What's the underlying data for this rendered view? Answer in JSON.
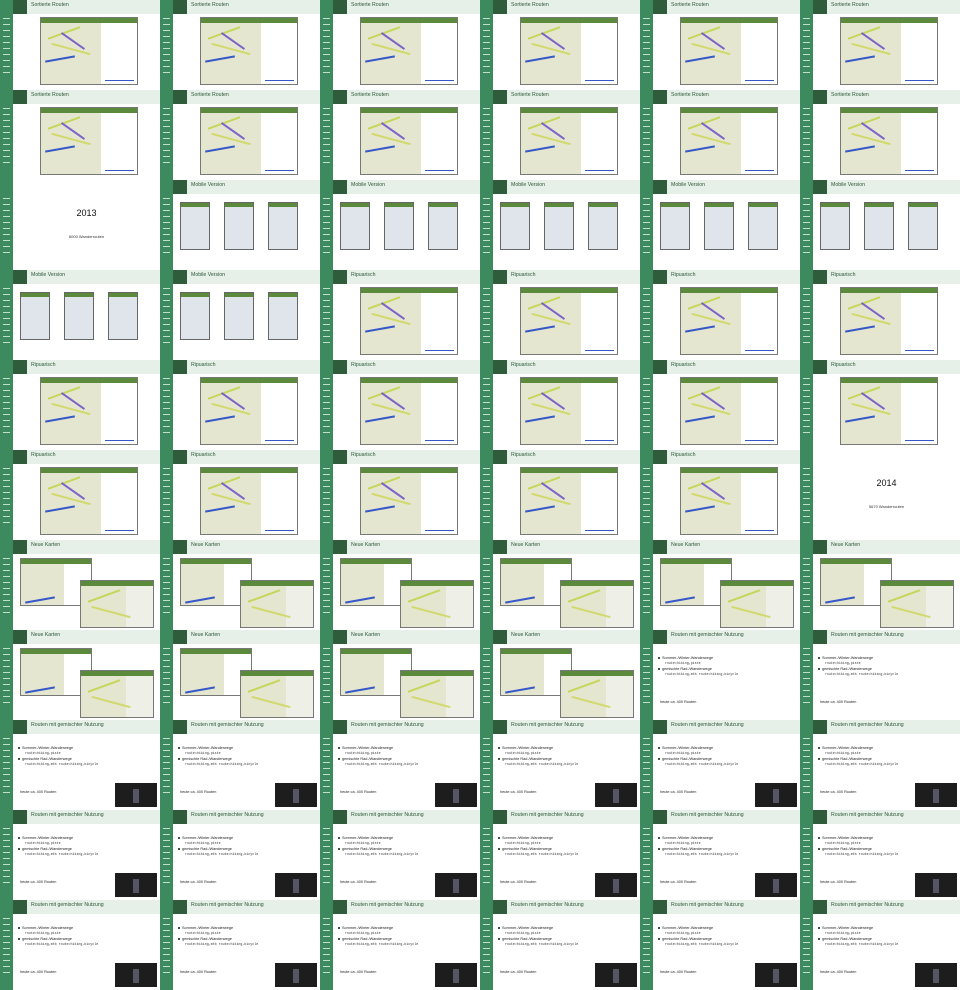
{
  "slides": [
    {
      "title": "Sortierte Routen",
      "kind": "map"
    },
    {
      "title": "Sortierte Routen",
      "kind": "map"
    },
    {
      "title": "Sortierte Routen",
      "kind": "map"
    },
    {
      "title": "Sortierte Routen",
      "kind": "map"
    },
    {
      "title": "Sortierte Routen",
      "kind": "map"
    },
    {
      "title": "Sortierte Routen",
      "kind": "map"
    },
    {
      "title": "Sortierte Routen",
      "kind": "map"
    },
    {
      "title": "Sortierte Routen",
      "kind": "map"
    },
    {
      "title": "Sortierte Routen",
      "kind": "map"
    },
    {
      "title": "Sortierte Routen",
      "kind": "map"
    },
    {
      "title": "Sortierte Routen",
      "kind": "map"
    },
    {
      "title": "Sortierte Routen",
      "kind": "map"
    },
    {
      "title": "",
      "kind": "year",
      "year": "2013",
      "subtitle": "6000 Wanderrouten"
    },
    {
      "title": "Mobile Version",
      "kind": "mobile"
    },
    {
      "title": "Mobile Version",
      "kind": "mobile"
    },
    {
      "title": "Mobile Version",
      "kind": "mobile"
    },
    {
      "title": "Mobile Version",
      "kind": "mobile"
    },
    {
      "title": "Mobile Version",
      "kind": "mobile"
    },
    {
      "title": "Mobile Version",
      "kind": "mobile"
    },
    {
      "title": "Mobile Version",
      "kind": "mobile"
    },
    {
      "title": "Ripuarisch",
      "kind": "map"
    },
    {
      "title": "Ripuarisch",
      "kind": "map"
    },
    {
      "title": "Ripuarisch",
      "kind": "map"
    },
    {
      "title": "Ripuarisch",
      "kind": "map"
    },
    {
      "title": "Ripuarisch",
      "kind": "map"
    },
    {
      "title": "Ripuarisch",
      "kind": "map"
    },
    {
      "title": "Ripuarisch",
      "kind": "map"
    },
    {
      "title": "Ripuarisch",
      "kind": "map"
    },
    {
      "title": "Ripuarisch",
      "kind": "map"
    },
    {
      "title": "Ripuarisch",
      "kind": "map"
    },
    {
      "title": "Ripuarisch",
      "kind": "map"
    },
    {
      "title": "Ripuarisch",
      "kind": "map"
    },
    {
      "title": "Ripuarisch",
      "kind": "map"
    },
    {
      "title": "Ripuarisch",
      "kind": "map"
    },
    {
      "title": "Ripuarisch",
      "kind": "map"
    },
    {
      "title": "",
      "kind": "year",
      "year": "2014",
      "subtitle": "5670 Wanderrouten"
    },
    {
      "title": "Neue Karten",
      "kind": "twin"
    },
    {
      "title": "Neue Karten",
      "kind": "twin"
    },
    {
      "title": "Neue Karten",
      "kind": "twin"
    },
    {
      "title": "Neue Karten",
      "kind": "twin"
    },
    {
      "title": "Neue Karten",
      "kind": "twin"
    },
    {
      "title": "Neue Karten",
      "kind": "twin"
    },
    {
      "title": "Neue Karten",
      "kind": "twin"
    },
    {
      "title": "Neue Karten",
      "kind": "twin"
    },
    {
      "title": "Neue Karten",
      "kind": "twin"
    },
    {
      "title": "Neue Karten",
      "kind": "twin"
    },
    {
      "title": "Routen mit gemischter Nutzung",
      "kind": "text",
      "video": false
    },
    {
      "title": "Routen mit gemischter Nutzung",
      "kind": "text",
      "video": false
    },
    {
      "title": "Routen mit gemischter Nutzung",
      "kind": "text",
      "video": true
    },
    {
      "title": "Routen mit gemischter Nutzung",
      "kind": "text",
      "video": true
    },
    {
      "title": "Routen mit gemischter Nutzung",
      "kind": "text",
      "video": true
    },
    {
      "title": "Routen mit gemischter Nutzung",
      "kind": "text",
      "video": true
    },
    {
      "title": "Routen mit gemischter Nutzung",
      "kind": "text",
      "video": true
    },
    {
      "title": "Routen mit gemischter Nutzung",
      "kind": "text",
      "video": true
    },
    {
      "title": "Routen mit gemischter Nutzung",
      "kind": "text",
      "video": true
    },
    {
      "title": "Routen mit gemischter Nutzung",
      "kind": "text",
      "video": true
    },
    {
      "title": "Routen mit gemischter Nutzung",
      "kind": "text",
      "video": true
    },
    {
      "title": "Routen mit gemischter Nutzung",
      "kind": "text",
      "video": true
    },
    {
      "title": "Routen mit gemischter Nutzung",
      "kind": "text",
      "video": true
    },
    {
      "title": "Routen mit gemischter Nutzung",
      "kind": "text",
      "video": true
    },
    {
      "title": "Routen mit gemischter Nutzung",
      "kind": "text",
      "video": true
    },
    {
      "title": "Routen mit gemischter Nutzung",
      "kind": "text",
      "video": true
    },
    {
      "title": "Routen mit gemischter Nutzung",
      "kind": "text",
      "video": true
    },
    {
      "title": "Routen mit gemischter Nutzung",
      "kind": "text",
      "video": true
    },
    {
      "title": "Routen mit gemischter Nutzung",
      "kind": "text",
      "video": true
    },
    {
      "title": "Routen mit gemischter Nutzung",
      "kind": "text",
      "video": true
    }
  ],
  "text_slide": {
    "bullet1": "Sommer-/Winter-Wanderwege",
    "code1": "route=hiking,piste",
    "bullet2": "gemischte Rad-/Wanderwege",
    "code2": "route=hiking,mtb route=hiking,bicycle",
    "footer": "heute ca. 400 Routen"
  }
}
